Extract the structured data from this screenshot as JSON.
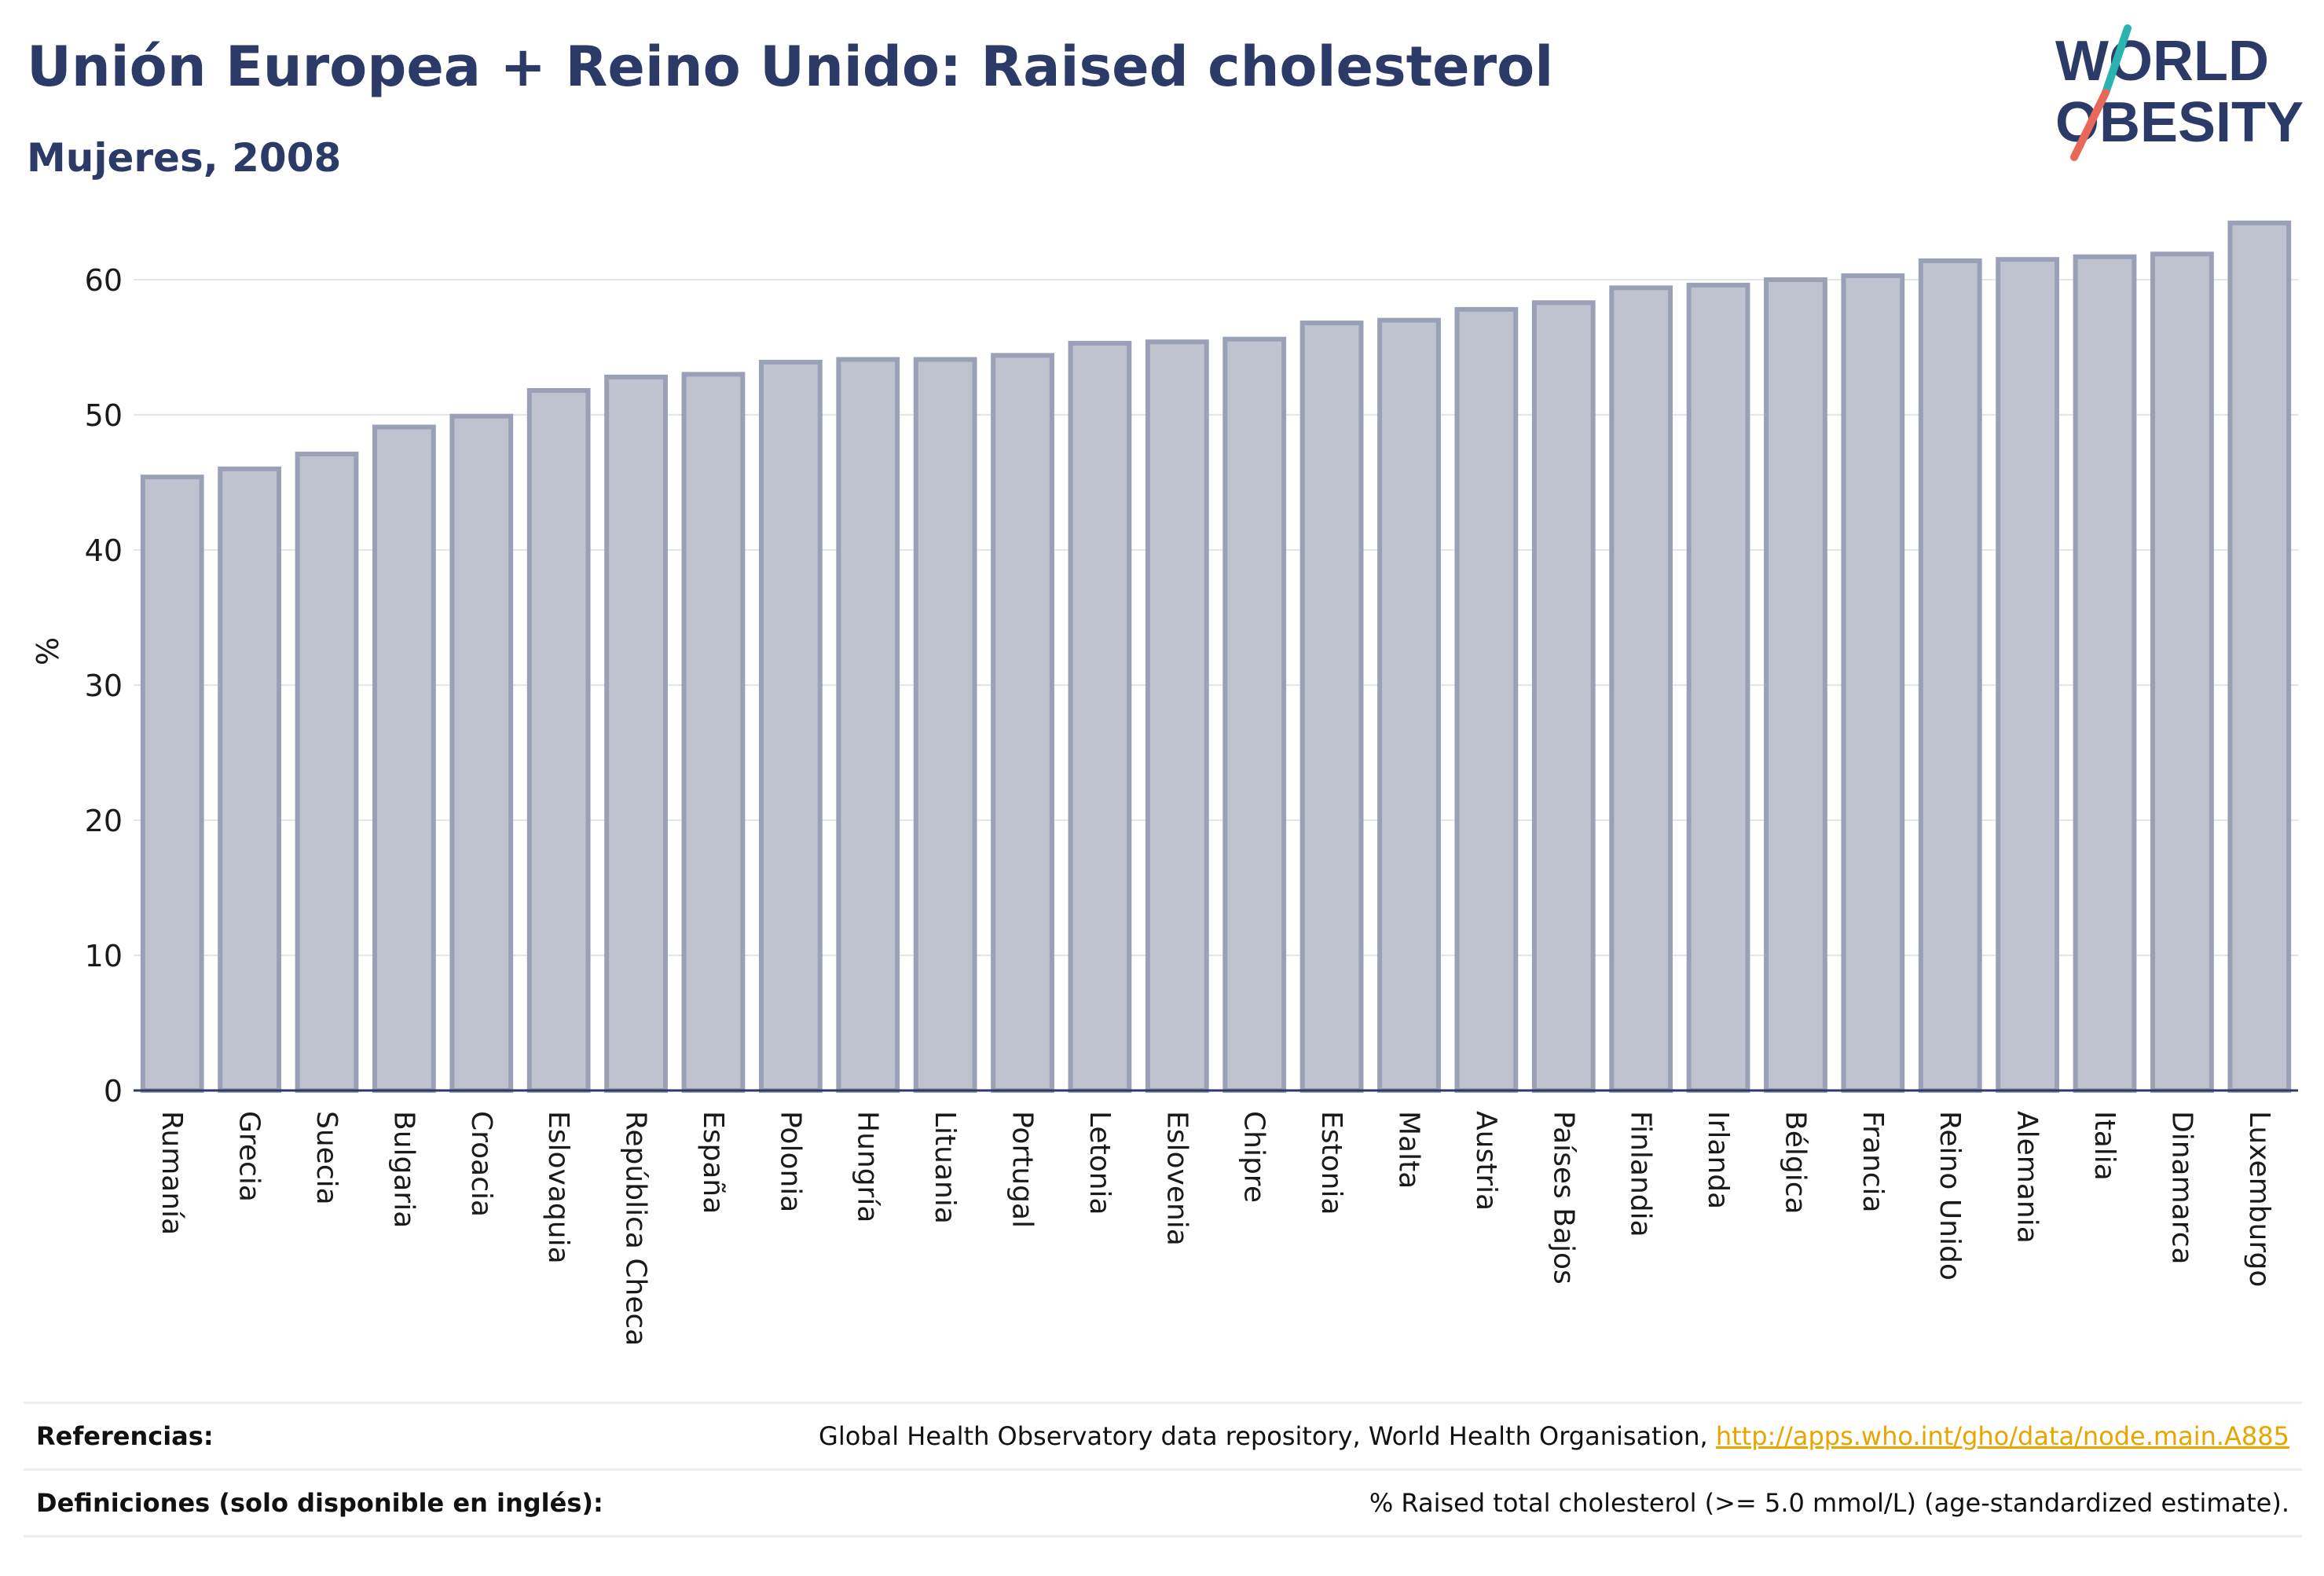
{
  "header": {
    "title": "Unión Europea + Reino Unido: Raised cholesterol",
    "subtitle": "Mujeres, 2008"
  },
  "logo": {
    "line1": "WORLD",
    "line2": "OBESITY",
    "colors": {
      "text": "#2b3a67",
      "teal": "#2ab3b1",
      "coral": "#e8685a"
    }
  },
  "chart_data": {
    "type": "bar",
    "title": "",
    "xlabel": "",
    "ylabel": "%",
    "ylim": [
      0,
      65
    ],
    "yticks": [
      0,
      10,
      20,
      30,
      40,
      50,
      60
    ],
    "grid": true,
    "legend": "none",
    "bar_fill": "#bfc2cf",
    "bar_stroke": "#9aa0b6",
    "categories": [
      "Rumanía",
      "Grecia",
      "Suecia",
      "Bulgaria",
      "Croacia",
      "Eslovaquia",
      "República Checa",
      "España",
      "Polonia",
      "Hungría",
      "Lituania",
      "Portugal",
      "Letonia",
      "Eslovenia",
      "Chipre",
      "Estonia",
      "Malta",
      "Austria",
      "Países Bajos",
      "Finlandia",
      "Irlanda",
      "Bélgica",
      "Francia",
      "Reino Unido",
      "Alemania",
      "Italia",
      "Dinamarca",
      "Luxemburgo"
    ],
    "values": [
      45.4,
      46.0,
      47.1,
      49.1,
      49.9,
      51.8,
      52.8,
      53.0,
      53.9,
      54.1,
      54.1,
      54.4,
      55.3,
      55.4,
      55.6,
      56.8,
      57.0,
      57.8,
      58.3,
      59.4,
      59.6,
      60.0,
      60.3,
      61.4,
      61.5,
      61.7,
      61.9,
      64.2
    ]
  },
  "footer": {
    "references_label": "Referencias:",
    "references_text": "Global Health Observatory data repository, World Health Organisation, ",
    "references_link": "http://apps.who.int/gho/data/node.main.A885",
    "definitions_label": "Definiciones (solo disponible en inglés):",
    "definitions_text": "% Raised total cholesterol (>= 5.0 mmol/L) (age-standardized estimate)."
  }
}
